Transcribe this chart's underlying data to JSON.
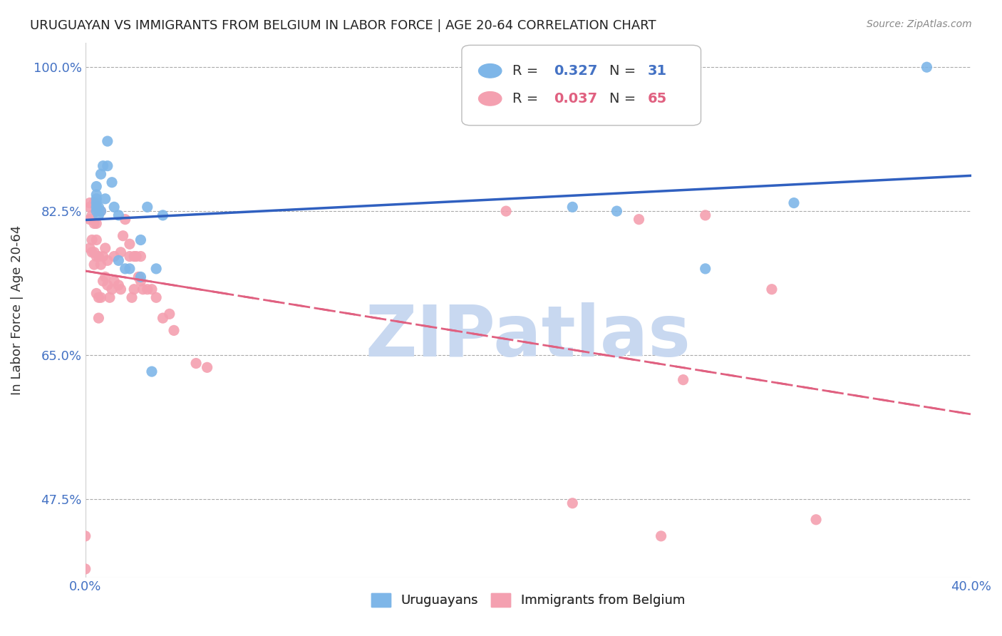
{
  "title": "URUGUAYAN VS IMMIGRANTS FROM BELGIUM IN LABOR FORCE | AGE 20-64 CORRELATION CHART",
  "source": "Source: ZipAtlas.com",
  "xlabel": "",
  "ylabel": "In Labor Force | Age 20-64",
  "xlim": [
    0.0,
    0.4
  ],
  "ylim": [
    0.38,
    1.03
  ],
  "yticks": [
    0.475,
    0.65,
    0.825,
    1.0
  ],
  "ytick_labels": [
    "47.5%",
    "65.0%",
    "82.5%",
    "100.0%"
  ],
  "xticks": [
    0.0,
    0.08,
    0.16,
    0.24,
    0.32,
    0.4
  ],
  "xtick_labels": [
    "0.0%",
    "",
    "",
    "",
    "",
    "40.0%"
  ],
  "uruguayan_R": 0.327,
  "uruguayan_N": 31,
  "belgium_R": 0.037,
  "belgium_N": 65,
  "uruguayan_color": "#7EB6E8",
  "belgium_color": "#F4A0B0",
  "trend_blue": "#3060C0",
  "trend_pink": "#E06080",
  "background_color": "#FFFFFF",
  "watermark": "ZIPatlas",
  "watermark_color": "#C8D8F0",
  "uruguayan_x": [
    0.005,
    0.005,
    0.005,
    0.005,
    0.005,
    0.005,
    0.006,
    0.006,
    0.007,
    0.007,
    0.008,
    0.009,
    0.01,
    0.01,
    0.012,
    0.013,
    0.015,
    0.015,
    0.018,
    0.02,
    0.025,
    0.025,
    0.028,
    0.03,
    0.032,
    0.035,
    0.22,
    0.24,
    0.28,
    0.32,
    0.38
  ],
  "uruguayan_y": [
    0.825,
    0.83,
    0.835,
    0.84,
    0.845,
    0.855,
    0.82,
    0.83,
    0.825,
    0.87,
    0.88,
    0.84,
    0.88,
    0.91,
    0.86,
    0.83,
    0.82,
    0.765,
    0.755,
    0.755,
    0.745,
    0.79,
    0.83,
    0.63,
    0.755,
    0.82,
    0.83,
    0.825,
    0.755,
    0.835,
    1.0
  ],
  "belgium_x": [
    0.0,
    0.0,
    0.002,
    0.002,
    0.002,
    0.002,
    0.003,
    0.003,
    0.003,
    0.004,
    0.004,
    0.004,
    0.004,
    0.005,
    0.005,
    0.005,
    0.005,
    0.005,
    0.006,
    0.006,
    0.006,
    0.007,
    0.007,
    0.007,
    0.008,
    0.008,
    0.009,
    0.009,
    0.01,
    0.01,
    0.011,
    0.012,
    0.013,
    0.013,
    0.015,
    0.016,
    0.016,
    0.017,
    0.018,
    0.02,
    0.02,
    0.021,
    0.022,
    0.022,
    0.023,
    0.024,
    0.025,
    0.025,
    0.026,
    0.028,
    0.03,
    0.032,
    0.035,
    0.038,
    0.04,
    0.05,
    0.055,
    0.19,
    0.22,
    0.25,
    0.26,
    0.27,
    0.28,
    0.31,
    0.33
  ],
  "belgium_y": [
    0.39,
    0.43,
    0.78,
    0.815,
    0.83,
    0.835,
    0.775,
    0.79,
    0.82,
    0.76,
    0.775,
    0.81,
    0.835,
    0.725,
    0.77,
    0.79,
    0.81,
    0.83,
    0.695,
    0.72,
    0.77,
    0.72,
    0.76,
    0.825,
    0.74,
    0.77,
    0.745,
    0.78,
    0.735,
    0.765,
    0.72,
    0.73,
    0.74,
    0.77,
    0.735,
    0.73,
    0.775,
    0.795,
    0.815,
    0.77,
    0.785,
    0.72,
    0.73,
    0.77,
    0.77,
    0.745,
    0.74,
    0.77,
    0.73,
    0.73,
    0.73,
    0.72,
    0.695,
    0.7,
    0.68,
    0.64,
    0.635,
    0.825,
    0.47,
    0.815,
    0.43,
    0.62,
    0.82,
    0.73,
    0.45
  ]
}
